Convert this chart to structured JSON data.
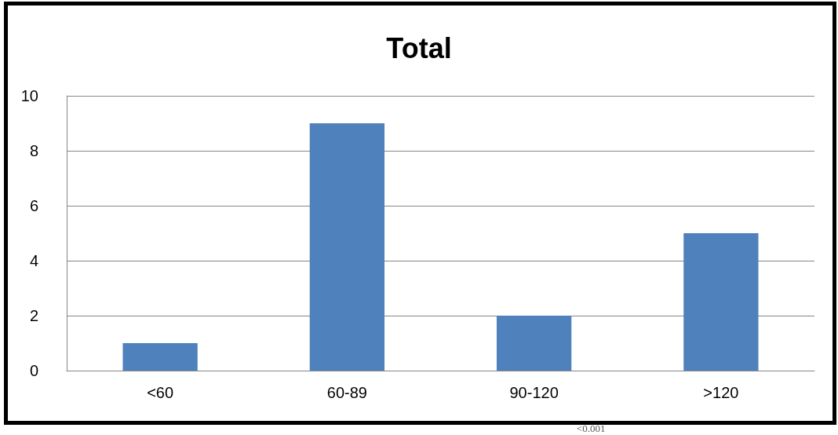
{
  "chart_data": {
    "type": "bar",
    "title": "Total",
    "categories": [
      "<60",
      "60-89",
      "90-120",
      ">120"
    ],
    "values": [
      1,
      9,
      2,
      5
    ],
    "color": "#4f81bd",
    "ylim": [
      0,
      10
    ],
    "yticks": [
      0,
      2,
      4,
      6,
      8,
      10
    ],
    "grid": "y",
    "annotations": [
      "<0.001"
    ]
  }
}
